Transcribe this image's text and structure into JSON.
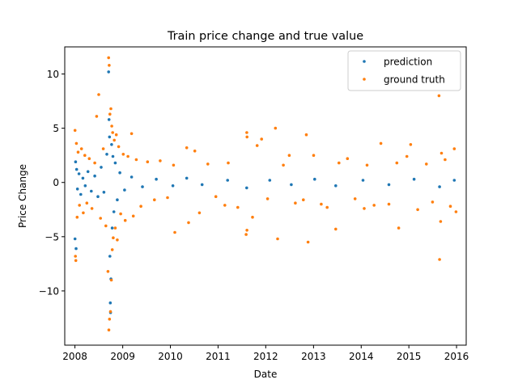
{
  "chart_data": {
    "type": "scatter",
    "title": "Train price change and true value",
    "xlabel": "Date",
    "ylabel": "Price Change",
    "xlim": [
      "2007-10-15",
      "2016-03-15"
    ],
    "ylim": [
      -15,
      12.5
    ],
    "x_ticks": [
      "2008",
      "2009",
      "2010",
      "2011",
      "2012",
      "2013",
      "2014",
      "2015",
      "2016"
    ],
    "y_ticks": [
      {
        "value": -10,
        "label": "−10"
      },
      {
        "value": -5,
        "label": "−5"
      },
      {
        "value": 0,
        "label": "0"
      },
      {
        "value": 5,
        "label": "5"
      },
      {
        "value": 10,
        "label": "10"
      }
    ],
    "grid": false,
    "legend_position": "top-right",
    "series": [
      {
        "name": "prediction",
        "color": "#1f77b4",
        "points": [
          {
            "x": "2008-01-02",
            "y": -5.2
          },
          {
            "x": "2008-01-06",
            "y": 1.9
          },
          {
            "x": "2008-01-10",
            "y": -6.1
          },
          {
            "x": "2008-01-14",
            "y": 1.2
          },
          {
            "x": "2008-01-20",
            "y": -0.6
          },
          {
            "x": "2008-02-01",
            "y": 0.8
          },
          {
            "x": "2008-02-15",
            "y": -1.1
          },
          {
            "x": "2008-03-02",
            "y": 0.4
          },
          {
            "x": "2008-03-20",
            "y": -0.3
          },
          {
            "x": "2008-04-10",
            "y": 1.0
          },
          {
            "x": "2008-05-05",
            "y": -0.8
          },
          {
            "x": "2008-06-01",
            "y": 0.6
          },
          {
            "x": "2008-06-25",
            "y": -1.3
          },
          {
            "x": "2008-07-20",
            "y": 1.4
          },
          {
            "x": "2008-08-10",
            "y": -0.9
          },
          {
            "x": "2008-09-01",
            "y": 2.6
          },
          {
            "x": "2008-09-15",
            "y": 10.2
          },
          {
            "x": "2008-09-18",
            "y": 5.8
          },
          {
            "x": "2008-09-22",
            "y": 4.2
          },
          {
            "x": "2008-09-25",
            "y": -6.8
          },
          {
            "x": "2008-09-28",
            "y": -11.1
          },
          {
            "x": "2008-09-30",
            "y": -12.0
          },
          {
            "x": "2008-10-03",
            "y": -8.9
          },
          {
            "x": "2008-10-08",
            "y": 3.5
          },
          {
            "x": "2008-10-12",
            "y": -4.2
          },
          {
            "x": "2008-10-18",
            "y": 2.4
          },
          {
            "x": "2008-10-25",
            "y": -2.7
          },
          {
            "x": "2008-11-05",
            "y": 1.8
          },
          {
            "x": "2008-11-20",
            "y": -1.6
          },
          {
            "x": "2008-12-10",
            "y": 0.9
          },
          {
            "x": "2009-01-15",
            "y": -0.7
          },
          {
            "x": "2009-03-10",
            "y": 0.5
          },
          {
            "x": "2009-06-01",
            "y": -0.4
          },
          {
            "x": "2009-09-15",
            "y": 0.3
          },
          {
            "x": "2010-01-20",
            "y": -0.3
          },
          {
            "x": "2010-05-06",
            "y": 0.4
          },
          {
            "x": "2010-09-01",
            "y": -0.2
          },
          {
            "x": "2011-03-15",
            "y": 0.2
          },
          {
            "x": "2011-08-08",
            "y": -0.5
          },
          {
            "x": "2012-02-01",
            "y": 0.2
          },
          {
            "x": "2012-07-15",
            "y": -0.2
          },
          {
            "x": "2013-01-10",
            "y": 0.3
          },
          {
            "x": "2013-06-20",
            "y": -0.3
          },
          {
            "x": "2014-01-15",
            "y": 0.2
          },
          {
            "x": "2014-08-01",
            "y": -0.2
          },
          {
            "x": "2015-02-10",
            "y": 0.3
          },
          {
            "x": "2015-08-24",
            "y": -0.4
          },
          {
            "x": "2015-12-15",
            "y": 0.2
          }
        ]
      },
      {
        "name": "ground truth",
        "color": "#ff7f0e",
        "points": [
          {
            "x": "2008-01-02",
            "y": 4.8
          },
          {
            "x": "2008-01-05",
            "y": -6.8
          },
          {
            "x": "2008-01-08",
            "y": -7.2
          },
          {
            "x": "2008-01-12",
            "y": 3.6
          },
          {
            "x": "2008-01-18",
            "y": -3.2
          },
          {
            "x": "2008-01-25",
            "y": 2.8
          },
          {
            "x": "2008-02-05",
            "y": -2.1
          },
          {
            "x": "2008-02-20",
            "y": 3.1
          },
          {
            "x": "2008-03-05",
            "y": -2.8
          },
          {
            "x": "2008-03-17",
            "y": 2.5
          },
          {
            "x": "2008-04-01",
            "y": -1.9
          },
          {
            "x": "2008-04-20",
            "y": 2.2
          },
          {
            "x": "2008-05-10",
            "y": -2.4
          },
          {
            "x": "2008-06-01",
            "y": 1.8
          },
          {
            "x": "2008-06-15",
            "y": 6.1
          },
          {
            "x": "2008-07-01",
            "y": 8.1
          },
          {
            "x": "2008-07-15",
            "y": -3.3
          },
          {
            "x": "2008-08-05",
            "y": 3.1
          },
          {
            "x": "2008-08-25",
            "y": -4.0
          },
          {
            "x": "2008-09-10",
            "y": -8.2
          },
          {
            "x": "2008-09-15",
            "y": 11.5
          },
          {
            "x": "2008-09-17",
            "y": -13.6
          },
          {
            "x": "2008-09-19",
            "y": 10.8
          },
          {
            "x": "2008-09-22",
            "y": -12.6
          },
          {
            "x": "2008-09-25",
            "y": 6.3
          },
          {
            "x": "2008-09-29",
            "y": -11.9
          },
          {
            "x": "2008-10-02",
            "y": 6.8
          },
          {
            "x": "2008-10-06",
            "y": -9.0
          },
          {
            "x": "2008-10-09",
            "y": 5.2
          },
          {
            "x": "2008-10-13",
            "y": -6.2
          },
          {
            "x": "2008-10-16",
            "y": 4.6
          },
          {
            "x": "2008-10-20",
            "y": -5.1
          },
          {
            "x": "2008-10-28",
            "y": 3.9
          },
          {
            "x": "2008-11-05",
            "y": -4.2
          },
          {
            "x": "2008-11-13",
            "y": 4.4
          },
          {
            "x": "2008-11-20",
            "y": -5.3
          },
          {
            "x": "2008-12-01",
            "y": 3.3
          },
          {
            "x": "2008-12-16",
            "y": -2.9
          },
          {
            "x": "2009-01-05",
            "y": 2.6
          },
          {
            "x": "2009-01-20",
            "y": -3.5
          },
          {
            "x": "2009-02-10",
            "y": 2.4
          },
          {
            "x": "2009-03-10",
            "y": 4.5
          },
          {
            "x": "2009-03-23",
            "y": -3.1
          },
          {
            "x": "2009-04-15",
            "y": 2.1
          },
          {
            "x": "2009-05-20",
            "y": -2.2
          },
          {
            "x": "2009-07-10",
            "y": 1.9
          },
          {
            "x": "2009-09-01",
            "y": -1.6
          },
          {
            "x": "2009-10-15",
            "y": 2.0
          },
          {
            "x": "2009-12-10",
            "y": -1.4
          },
          {
            "x": "2010-01-25",
            "y": 1.6
          },
          {
            "x": "2010-02-04",
            "y": -4.6
          },
          {
            "x": "2010-05-06",
            "y": 3.2
          },
          {
            "x": "2010-05-20",
            "y": -3.7
          },
          {
            "x": "2010-07-07",
            "y": 2.9
          },
          {
            "x": "2010-08-11",
            "y": -2.8
          },
          {
            "x": "2010-10-15",
            "y": 1.7
          },
          {
            "x": "2010-12-15",
            "y": -1.3
          },
          {
            "x": "2011-02-22",
            "y": -2.1
          },
          {
            "x": "2011-03-20",
            "y": 1.8
          },
          {
            "x": "2011-06-01",
            "y": -2.3
          },
          {
            "x": "2011-08-04",
            "y": -4.8
          },
          {
            "x": "2011-08-09",
            "y": 4.6
          },
          {
            "x": "2011-08-10",
            "y": -4.4
          },
          {
            "x": "2011-08-11",
            "y": 4.2
          },
          {
            "x": "2011-09-22",
            "y": -3.2
          },
          {
            "x": "2011-10-27",
            "y": 3.4
          },
          {
            "x": "2011-11-30",
            "y": 4.0
          },
          {
            "x": "2012-01-15",
            "y": -1.5
          },
          {
            "x": "2012-03-15",
            "y": 5.0
          },
          {
            "x": "2012-04-01",
            "y": -5.2
          },
          {
            "x": "2012-05-15",
            "y": 1.6
          },
          {
            "x": "2012-06-29",
            "y": 2.5
          },
          {
            "x": "2012-08-15",
            "y": -1.9
          },
          {
            "x": "2012-10-15",
            "y": -1.6
          },
          {
            "x": "2012-11-07",
            "y": 4.4
          },
          {
            "x": "2012-11-20",
            "y": -5.5
          },
          {
            "x": "2013-01-02",
            "y": 2.5
          },
          {
            "x": "2013-03-01",
            "y": -2.0
          },
          {
            "x": "2013-04-15",
            "y": -2.3
          },
          {
            "x": "2013-06-20",
            "y": -4.3
          },
          {
            "x": "2013-07-15",
            "y": 1.8
          },
          {
            "x": "2013-09-18",
            "y": 2.2
          },
          {
            "x": "2013-11-15",
            "y": -1.5
          },
          {
            "x": "2014-01-24",
            "y": -2.4
          },
          {
            "x": "2014-02-15",
            "y": 1.6
          },
          {
            "x": "2014-04-10",
            "y": -2.1
          },
          {
            "x": "2014-06-01",
            "y": 3.6
          },
          {
            "x": "2014-08-01",
            "y": -2.0
          },
          {
            "x": "2014-10-01",
            "y": 1.8
          },
          {
            "x": "2014-10-15",
            "y": -4.2
          },
          {
            "x": "2014-12-17",
            "y": 2.4
          },
          {
            "x": "2015-01-15",
            "y": 3.5
          },
          {
            "x": "2015-03-10",
            "y": -2.5
          },
          {
            "x": "2015-05-15",
            "y": 1.7
          },
          {
            "x": "2015-07-01",
            "y": -1.8
          },
          {
            "x": "2015-08-20",
            "y": 8.0
          },
          {
            "x": "2015-08-24",
            "y": -7.1
          },
          {
            "x": "2015-09-01",
            "y": -3.6
          },
          {
            "x": "2015-09-08",
            "y": 2.7
          },
          {
            "x": "2015-10-05",
            "y": 2.1
          },
          {
            "x": "2015-11-15",
            "y": -2.2
          },
          {
            "x": "2015-12-15",
            "y": 3.1
          },
          {
            "x": "2015-12-28",
            "y": -2.7
          }
        ]
      }
    ]
  }
}
